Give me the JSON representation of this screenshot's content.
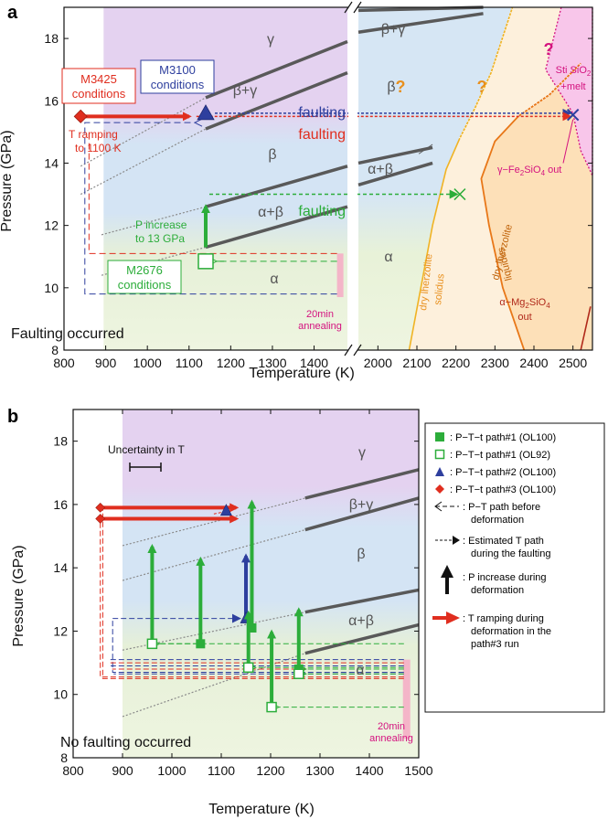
{
  "colors": {
    "gamma": "#ead7f2",
    "beta": "#d6e6f4",
    "alpha": "#e8f2d8",
    "solidus_zone": "#fdf0dc",
    "liquidus_zone": "#fde0b8",
    "melt_zone": "#f8c8ec",
    "boundary": "#595959",
    "red": "#e02e1f",
    "blue": "#2e3f9e",
    "green": "#2cad3a",
    "magenta": "#d4127f",
    "orange": "#e8901e",
    "gray_dot": "#8a8a8a",
    "annealing": "#f4b5c8"
  },
  "chart_data": [
    {
      "panel_label": "a",
      "type": "line",
      "xlabel": "Temperature (K)",
      "ylabel": "Pressure (GPa)",
      "xlim_left": [
        800,
        1480
      ],
      "xlim_right": [
        1950,
        2550
      ],
      "ylim": [
        8,
        19
      ],
      "xticks_left": [
        "800",
        "900",
        "1000",
        "1100",
        "1200",
        "1300",
        "1400"
      ],
      "xticks_right": [
        "2000",
        "2100",
        "2200",
        "2300",
        "2400",
        "2500"
      ],
      "yticks": [
        "8",
        "10",
        "12",
        "14",
        "16",
        "18"
      ],
      "corner_note": "Faulting occurred",
      "phase_labels": [
        "γ",
        "β+γ",
        "β",
        "α+β",
        "α",
        "β+γ",
        "β",
        "α+β",
        "α"
      ],
      "phase_boundaries": [
        {
          "name": "β/β+γ",
          "x": [
            1140,
            1480
          ],
          "y": [
            16.1,
            17.9
          ]
        },
        {
          "name": "β+γ/γ-low",
          "x": [
            1140,
            1480
          ],
          "y": [
            15.1,
            16.9
          ]
        },
        {
          "name": "α+β/β",
          "x": [
            1140,
            1480
          ],
          "y": [
            12.6,
            13.9
          ]
        },
        {
          "name": "α/α+β",
          "x": [
            1140,
            1480
          ],
          "y": [
            11.3,
            12.6
          ]
        },
        {
          "name": "right β+γ upper",
          "x": [
            1950,
            2270
          ],
          "y": [
            18.9,
            19.0
          ]
        },
        {
          "name": "right β+γ lower",
          "x": [
            1950,
            2270
          ],
          "y": [
            18.2,
            18.8
          ]
        },
        {
          "name": "right α+β upper",
          "x": [
            1950,
            2140
          ],
          "y": [
            14.0,
            14.5
          ]
        },
        {
          "name": "right α+β lower",
          "x": [
            1950,
            2140
          ],
          "y": [
            13.3,
            14.0
          ]
        }
      ],
      "extrapolated_boundaries": [
        {
          "x": [
            840,
            1140
          ],
          "y": [
            13.9,
            16.1
          ]
        },
        {
          "x": [
            840,
            1140
          ],
          "y": [
            13.0,
            15.1
          ]
        },
        {
          "x": [
            890,
            1140
          ],
          "y": [
            11.7,
            12.6
          ]
        },
        {
          "x": [
            890,
            1140
          ],
          "y": [
            10.4,
            11.3
          ]
        }
      ],
      "melting_curves": [
        {
          "name": "dry lherzolite solidus",
          "x": [
            2080,
            2110,
            2140,
            2175,
            2210,
            2250,
            2290,
            2345
          ],
          "y": [
            8,
            10,
            12,
            13.8,
            14.8,
            15.8,
            16.9,
            19
          ]
        },
        {
          "name": "dry lherzolite liquidus",
          "x": [
            2375,
            2320,
            2285,
            2265,
            2300,
            2360,
            2440,
            2520
          ],
          "y": [
            8,
            10,
            12,
            13.5,
            14.7,
            15.5,
            16.2,
            17.2
          ]
        }
      ],
      "paths": [
        {
          "name": "M3425",
          "color": "red",
          "T_path": [
            840,
            1100
          ],
          "P": 15.5,
          "faulting_T": 2500
        },
        {
          "name": "M3100",
          "color": "blue",
          "T": 1140,
          "P": 15.6,
          "faulting_T": 2500
        },
        {
          "name": "M2676",
          "color": "green",
          "T": 1140,
          "P_from": 10.85,
          "P_to": 13.0,
          "faulting_T": 2210
        }
      ],
      "annotations": {
        "m3425": [
          "M3425",
          "conditions"
        ],
        "m3100": [
          "M3100",
          "conditions"
        ],
        "m2676": [
          "M2676",
          "conditions"
        ],
        "t_ramp": [
          "T ramping",
          "to 1100 K"
        ],
        "p_increase": [
          "P increase",
          "to 13 GPa"
        ],
        "faulting_blue": "faulting",
        "faulting_red": "faulting",
        "faulting_green": "faulting",
        "annealing": [
          "20min",
          "annealing"
        ],
        "sti": [
          "Sti SiO",
          "2",
          "+melt"
        ],
        "fe2sio4": [
          "γ−Fe",
          "2",
          "SiO",
          "4",
          " out"
        ],
        "mg2sio4": [
          "α−Mg",
          "2",
          "SiO",
          "4",
          "out"
        ],
        "solidus": [
          "dry lherzolite",
          "solidus"
        ],
        "liquidus": [
          "dry lherzolite",
          "liquidus"
        ],
        "question": "?"
      }
    },
    {
      "panel_label": "b",
      "type": "line",
      "xlabel": "Temperature (K)",
      "ylabel": "Pressure (GPa)",
      "xlim": [
        800,
        1500
      ],
      "ylim": [
        8,
        19
      ],
      "xticks": [
        "800",
        "900",
        "1000",
        "1100",
        "1200",
        "1300",
        "1400",
        "1500"
      ],
      "yticks": [
        "8",
        "10",
        "12",
        "14",
        "16",
        "18"
      ],
      "corner_note": "No faulting occurred",
      "uncertainty_label": "Uncertainty in T",
      "phase_labels": [
        "γ",
        "β+γ",
        "β",
        "α+β",
        "α"
      ],
      "annealing": [
        "20min",
        "annealing"
      ],
      "green_runs_filled": [
        {
          "T": 960,
          "P_from": 11.6,
          "P_to": 14.9
        },
        {
          "T": 1058,
          "P_from": 11.6,
          "P_to": 14.5
        },
        {
          "T": 1162,
          "P_from": 12.1,
          "P_to": 16.3
        },
        {
          "T": 1257,
          "P_from": 10.8,
          "P_to": 12.9
        }
      ],
      "green_runs_open": [
        {
          "T": 960,
          "P_from": 11.6,
          "P_to": 11.6
        },
        {
          "T": 1155,
          "P_from": 10.85,
          "P_to": 12.8
        },
        {
          "T": 1202,
          "P_from": 9.6,
          "P_to": 12.2
        },
        {
          "T": 1257,
          "P_from": 10.65,
          "P_to": 10.65
        }
      ],
      "blue_run": {
        "T": 1150,
        "P_from": 12.4,
        "P_to": 14.6
      },
      "blue_triangle": {
        "T": 1110,
        "P": 15.8
      },
      "red_runs": [
        {
          "T_from": 855,
          "T_to": 1130,
          "P": 15.9
        },
        {
          "T_from": 855,
          "T_to": 1130,
          "P": 15.55
        }
      ],
      "legend": [
        {
          "label": "P−T−t path#1 (OL100)"
        },
        {
          "label": "P−T−t path#1 (OL92)"
        },
        {
          "label": "P−T−t path#2 (OL100)"
        },
        {
          "label": "P−T−t path#3 (OL100)"
        },
        {
          "label": "P−T path before",
          "label2": "deformation"
        },
        {
          "label": "Estimated T path",
          "label2": "during the faulting"
        },
        {
          "label": "P increase during",
          "label2": "deformation"
        },
        {
          "label": "T ramping during",
          "label2": "deformation in the",
          "label3": "path#3 run"
        }
      ]
    }
  ]
}
